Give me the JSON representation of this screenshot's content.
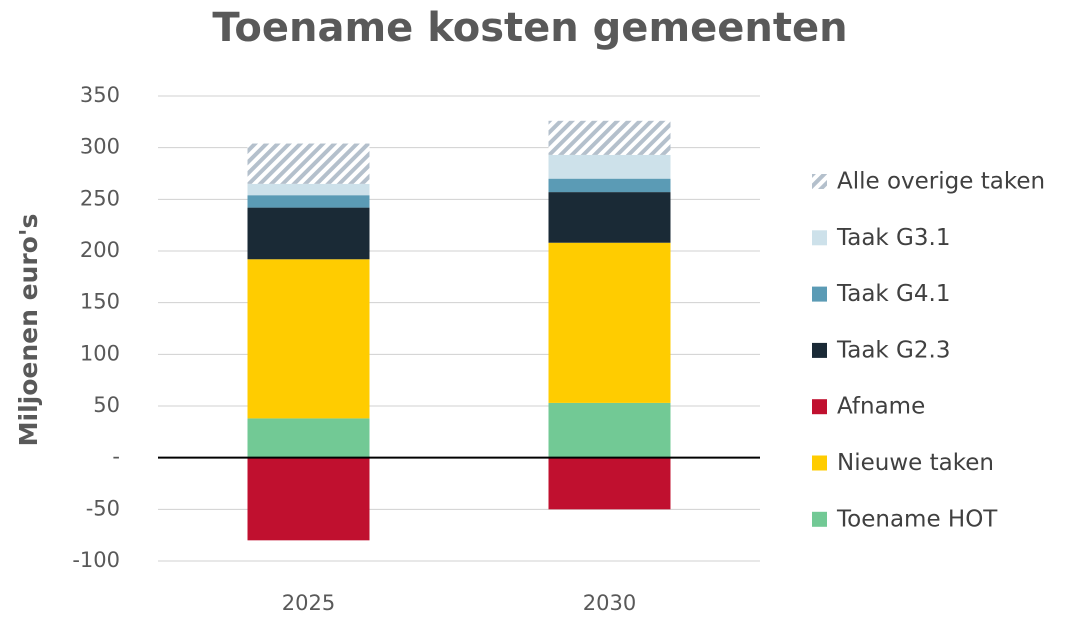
{
  "chart_data": {
    "type": "stacked_bar",
    "title": "Toename kosten gemeenten",
    "y_label": "Miljoenen euro's",
    "categories": [
      "2025",
      "2030"
    ],
    "series": [
      {
        "name": "Alle overige taken",
        "color": "#b4c0cc",
        "hatch": true,
        "values": [
          39,
          33
        ]
      },
      {
        "name": "Taak G3.1",
        "color": "#cde1ea",
        "values": [
          11,
          23
        ]
      },
      {
        "name": "Taak G4.1",
        "color": "#5b9bb5",
        "values": [
          12,
          13
        ]
      },
      {
        "name": "Taak G2.3",
        "color": "#1a2a36",
        "values": [
          50,
          49
        ]
      },
      {
        "name": "Afname",
        "color": "#c0102f",
        "values": [
          -80,
          -50
        ]
      },
      {
        "name": "Nieuwe taken",
        "color": "#ffcc00",
        "values": [
          154,
          155
        ]
      },
      {
        "name": "Toename HOT",
        "color": "#72c995",
        "values": [
          38,
          53
        ]
      }
    ],
    "ylim": [
      -100,
      350
    ],
    "yticks": [
      -100,
      -50,
      {
        "value": 0,
        "label": "-"
      },
      50,
      100,
      150,
      200,
      250,
      300,
      350
    ],
    "grid": true
  }
}
